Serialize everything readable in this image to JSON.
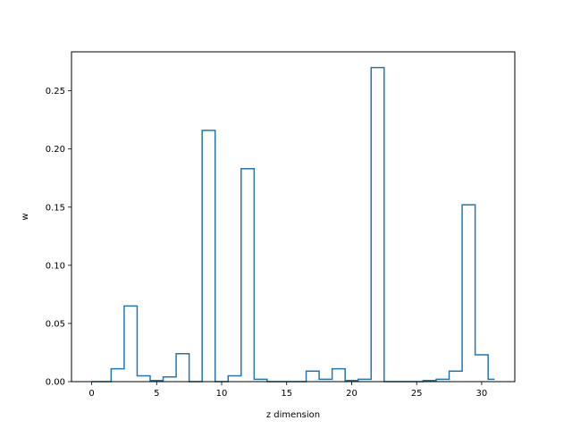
{
  "chart_data": {
    "type": "step",
    "xlabel": "z dimension",
    "ylabel": "w",
    "xlim": [
      -1.55,
      32.55
    ],
    "ylim": [
      0,
      0.2835
    ],
    "x_ticks": [
      "0",
      "5",
      "10",
      "15",
      "20",
      "25",
      "30"
    ],
    "y_ticks": [
      "0.00",
      "0.05",
      "0.10",
      "0.15",
      "0.20",
      "0.25"
    ],
    "grid": false,
    "series": [
      {
        "color": "#1f77b4",
        "x": [
          0,
          1,
          2,
          3,
          4,
          5,
          6,
          7,
          8,
          9,
          10,
          11,
          12,
          13,
          14,
          15,
          16,
          17,
          18,
          19,
          20,
          21,
          22,
          23,
          24,
          25,
          26,
          27,
          28,
          29,
          30,
          31
        ],
        "values": [
          0.0,
          0.0,
          0.011,
          0.065,
          0.005,
          0.001,
          0.004,
          0.024,
          0.0,
          0.216,
          0.0,
          0.005,
          0.183,
          0.002,
          0.0,
          0.0,
          0.0,
          0.009,
          0.002,
          0.011,
          0.001,
          0.002,
          0.27,
          0.0,
          0.0,
          0.0,
          0.001,
          0.002,
          0.009,
          0.152,
          0.023,
          0.002
        ]
      }
    ]
  }
}
